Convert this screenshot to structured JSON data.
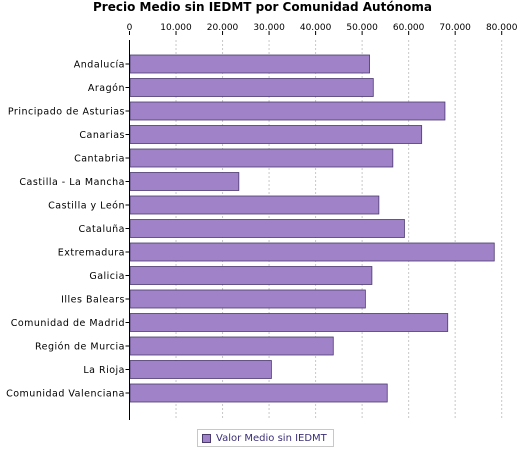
{
  "chart_data": {
    "type": "bar",
    "orientation": "horizontal",
    "title": "Precio Medio sin IEDMT por Comunidad Autónoma",
    "categories": [
      "Andalucía",
      "Aragón",
      "Principado de Asturias",
      "Canarias",
      "Cantabria",
      "Castilla - La Mancha",
      "Castilla y León",
      "Cataluña",
      "Extremadura",
      "Galicia",
      "Illes Balears",
      "Comunidad de Madrid",
      "Región de Murcia",
      "La Rioja",
      "Comunidad Valenciana"
    ],
    "series": [
      {
        "name": "Valor Medio sin IEDMT",
        "values": [
          51600,
          52400,
          67800,
          62800,
          56600,
          23500,
          53600,
          59100,
          78400,
          52100,
          50700,
          68400,
          43800,
          30500,
          55400
        ],
        "color": "#a082c8"
      }
    ],
    "x_ticks": [
      "0",
      "10.000",
      "20.000",
      "30.000",
      "40.000",
      "50.000",
      "60.000",
      "70.000",
      "80.000"
    ],
    "xlim": [
      0,
      82000
    ],
    "grid": true,
    "legend_position": "bottom-center",
    "bar_border_color": "#4b3a6e",
    "grid_color": "#c8c8c8"
  }
}
